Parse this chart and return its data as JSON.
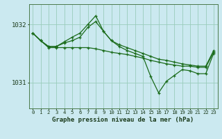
{
  "xlabel": "Graphe pression niveau de la mer (hPa)",
  "bg_color": "#cbe9f0",
  "plot_bg_color": "#cbe9f0",
  "grid_color": "#99ccbb",
  "line_color": "#1a6b1a",
  "ylim": [
    1030.55,
    1032.35
  ],
  "xlim": [
    -0.5,
    23.5
  ],
  "yticks": [
    1031,
    1032
  ],
  "xticks": [
    0,
    1,
    2,
    3,
    4,
    5,
    6,
    7,
    8,
    9,
    10,
    11,
    12,
    13,
    14,
    15,
    16,
    17,
    18,
    19,
    20,
    21,
    22,
    23
  ],
  "series": [
    [
      1031.85,
      1031.72,
      1031.62,
      1031.62,
      1031.68,
      1031.72,
      1031.78,
      1031.95,
      1032.05,
      1031.88,
      1031.72,
      1031.65,
      1031.6,
      1031.55,
      1031.5,
      1031.45,
      1031.4,
      1031.38,
      1031.35,
      1031.32,
      1031.3,
      1031.28,
      1031.28,
      1031.55
    ],
    [
      1031.85,
      1031.72,
      1031.62,
      1031.62,
      1031.7,
      1031.78,
      1031.85,
      1032.0,
      1032.15,
      1031.88,
      1031.72,
      1031.62,
      1031.55,
      1031.5,
      1031.45,
      1031.1,
      1030.82,
      1031.02,
      1031.12,
      1031.22,
      1031.2,
      1031.15,
      1031.15,
      1031.5
    ],
    [
      1031.85,
      1031.72,
      1031.6,
      1031.6,
      1031.6,
      1031.6,
      1031.6,
      1031.6,
      1031.58,
      1031.55,
      1031.52,
      1031.5,
      1031.48,
      1031.45,
      1031.42,
      1031.38,
      1031.35,
      1031.32,
      1031.3,
      1031.28,
      1031.28,
      1031.26,
      1031.26,
      1031.52
    ]
  ]
}
